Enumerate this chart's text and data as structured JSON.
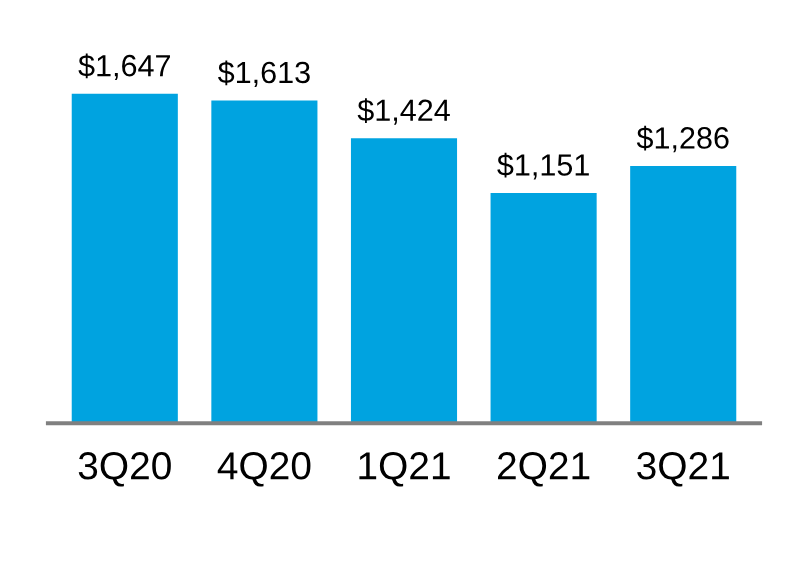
{
  "chart_data": {
    "type": "bar",
    "categories": [
      "3Q20",
      "4Q20",
      "1Q21",
      "2Q21",
      "3Q21"
    ],
    "values": [
      1647,
      1613,
      1424,
      1151,
      1286
    ],
    "value_labels": [
      "$1,647",
      "$1,613",
      "$1,424",
      "$1,151",
      "$1,286"
    ],
    "color": "#00a3e0",
    "tick_labels": "x",
    "grid": false,
    "legend": false
  }
}
